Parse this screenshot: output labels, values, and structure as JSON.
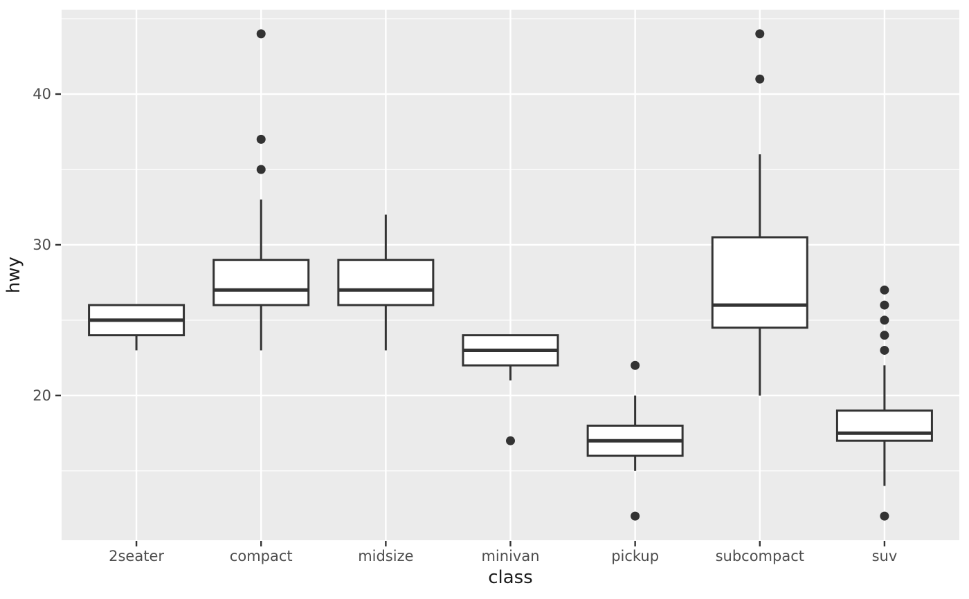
{
  "chart_data": {
    "type": "boxplot",
    "title": "",
    "xlabel": "class",
    "ylabel": "hwy",
    "categories": [
      "2seater",
      "compact",
      "midsize",
      "minivan",
      "pickup",
      "subcompact",
      "suv"
    ],
    "series": [
      {
        "category": "2seater",
        "whisker_low": 23,
        "q1": 24,
        "median": 25,
        "q3": 26,
        "whisker_high": 26,
        "outliers": []
      },
      {
        "category": "compact",
        "whisker_low": 23,
        "q1": 26,
        "median": 27,
        "q3": 29,
        "whisker_high": 33,
        "outliers": [
          35,
          37,
          44
        ]
      },
      {
        "category": "midsize",
        "whisker_low": 23,
        "q1": 26,
        "median": 27,
        "q3": 29,
        "whisker_high": 32,
        "outliers": []
      },
      {
        "category": "minivan",
        "whisker_low": 21,
        "q1": 22,
        "median": 23,
        "q3": 24,
        "whisker_high": 24,
        "outliers": [
          17
        ]
      },
      {
        "category": "pickup",
        "whisker_low": 15,
        "q1": 16,
        "median": 17,
        "q3": 18,
        "whisker_high": 20,
        "outliers": [
          12,
          22
        ]
      },
      {
        "category": "subcompact",
        "whisker_low": 20,
        "q1": 24.5,
        "median": 26,
        "q3": 30.5,
        "whisker_high": 36,
        "outliers": [
          41,
          44
        ]
      },
      {
        "category": "suv",
        "whisker_low": 14,
        "q1": 17,
        "median": 17.5,
        "q3": 19,
        "whisker_high": 22,
        "outliers": [
          12,
          23,
          24,
          25,
          26,
          27
        ]
      }
    ],
    "y_ticks": [
      20,
      30,
      40
    ],
    "y_minor_ticks": [
      15,
      25,
      35,
      45
    ],
    "ylim": [
      10.4,
      45.6
    ],
    "grid": true,
    "legend": false
  },
  "colors": {
    "panel_bg": "#EBEBEB",
    "page_bg": "#FFFFFF",
    "grid_major": "#FFFFFF",
    "grid_minor": "#FFFFFF",
    "box_stroke": "#333333",
    "box_fill": "#FFFFFF",
    "median_stroke": "#333333",
    "outlier_fill": "#333333",
    "tick_mark": "#333333",
    "tick_label": "#4D4D4D",
    "axis_title": "#1A1A1A"
  }
}
